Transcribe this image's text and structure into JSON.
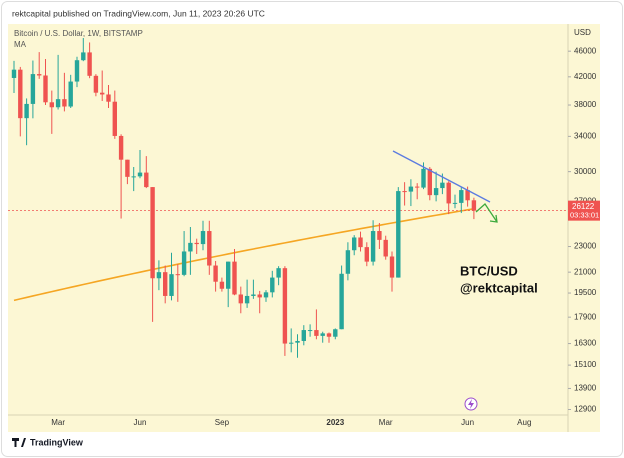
{
  "chart_data": {
    "type": "candlestick",
    "header": "rektcapital published on TradingView.com, Jun 11, 2023 20:26 UTC",
    "title": "Bitcoin / U.S. Dollar, 1W, BITSTAMP",
    "y_axis_label": "USD",
    "log_scale": true,
    "up_color": "#26a69a",
    "down_color": "#ef5350",
    "categories": [
      null,
      null,
      null,
      null,
      null,
      null,
      null,
      "Mar",
      null,
      null,
      null,
      null,
      null,
      null,
      null,
      null,
      null,
      null,
      null,
      null,
      "Jun",
      null,
      null,
      null,
      null,
      null,
      null,
      null,
      null,
      null,
      null,
      null,
      null,
      "Sep",
      null,
      null,
      null,
      null,
      null,
      null,
      null,
      null,
      null,
      null,
      null,
      null,
      null,
      null,
      null,
      null,
      null,
      "2023",
      null,
      null,
      null,
      null,
      null,
      null,
      null,
      "Mar",
      null,
      null,
      null,
      null,
      null,
      null,
      null,
      null,
      null,
      null,
      null,
      null,
      "Jun",
      null,
      null,
      null,
      null,
      null,
      null,
      null,
      null,
      "Aug",
      null,
      null,
      null,
      null,
      null,
      null
    ],
    "open": [
      41830,
      43080,
      36270,
      38150,
      42410,
      42200,
      38370,
      37700,
      38800,
      37800,
      41300,
      44550,
      45800,
      42150,
      39700,
      39450,
      38450,
      34050,
      31300,
      29450,
      29500,
      29900,
      28400,
      20550,
      21000,
      19300,
      20850,
      20800,
      22600,
      23300,
      23200,
      24300,
      21500,
      20300,
      19800,
      21800,
      19400,
      18800,
      19300,
      19400,
      19200,
      19550,
      20600,
      21300,
      16300,
      16350,
      16450,
      17100,
      17100,
      16750,
      16900,
      16700,
      17150,
      20880,
      22700,
      23750,
      22950,
      21800,
      24300,
      23550,
      22200,
      20600,
      28000,
      27950,
      28450,
      28350,
      30300,
      27600,
      28300,
      28850,
      26800,
      26850,
      28100,
      27100,
      null,
      null,
      null,
      null,
      null,
      null,
      null,
      null,
      null,
      null,
      null,
      null,
      null,
      null
    ],
    "high": [
      44450,
      43500,
      38900,
      44500,
      45850,
      44750,
      40000,
      45400,
      42600,
      42300,
      45100,
      48200,
      47450,
      42400,
      42950,
      40800,
      40000,
      34250,
      31300,
      30500,
      32400,
      31700,
      28400,
      21900,
      21500,
      22500,
      21600,
      24300,
      24650,
      23650,
      25200,
      25200,
      21850,
      20600,
      21800,
      22800,
      19950,
      20450,
      20450,
      19650,
      19700,
      21100,
      21450,
      21450,
      17200,
      16850,
      17400,
      17450,
      18400,
      17000,
      16950,
      17200,
      21500,
      23350,
      23950,
      24250,
      23350,
      25250,
      25000,
      23900,
      22600,
      28400,
      28900,
      29200,
      28800,
      31000,
      30500,
      30000,
      29800,
      29000,
      27650,
      28400,
      28450,
      27350,
      null,
      null,
      null,
      null,
      null,
      null,
      null,
      null,
      null,
      null,
      null,
      null,
      null,
      null
    ],
    "low": [
      39660,
      34000,
      32950,
      36250,
      41700,
      38000,
      34300,
      37400,
      37150,
      37600,
      40500,
      44400,
      41800,
      39200,
      38550,
      37600,
      33700,
      25400,
      28700,
      28000,
      29300,
      28300,
      17600,
      19700,
      18800,
      19000,
      18900,
      20700,
      20800,
      22400,
      22700,
      20800,
      19600,
      19600,
      18550,
      19350,
      18150,
      18500,
      19100,
      18150,
      18900,
      19200,
      20050,
      15600,
      15800,
      15500,
      16200,
      16700,
      16550,
      16350,
      16350,
      16550,
      17150,
      20400,
      22300,
      22600,
      21450,
      21500,
      22800,
      21950,
      19600,
      20600,
      26600,
      26550,
      27200,
      28200,
      27100,
      27000,
      27700,
      25800,
      26350,
      25900,
      26500,
      25350,
      null,
      null,
      null,
      null,
      null,
      null,
      null,
      null,
      null,
      null,
      null,
      null,
      null,
      null
    ],
    "close": [
      43080,
      36270,
      38150,
      42410,
      42200,
      38370,
      37700,
      38800,
      37800,
      41300,
      44550,
      45800,
      42150,
      39700,
      39450,
      38450,
      34050,
      31300,
      29450,
      29500,
      29900,
      28400,
      20550,
      21000,
      19300,
      20850,
      20800,
      22600,
      23300,
      23200,
      24300,
      21500,
      20300,
      19800,
      21800,
      19400,
      18800,
      19300,
      19400,
      19200,
      19550,
      20600,
      21300,
      16300,
      16350,
      16450,
      17100,
      17100,
      16750,
      16900,
      16700,
      17150,
      20880,
      22700,
      23750,
      22950,
      21800,
      24300,
      23550,
      22200,
      20600,
      28000,
      27950,
      28450,
      28350,
      30300,
      27600,
      28300,
      28850,
      26800,
      26850,
      28100,
      27100,
      26122,
      null,
      null,
      null,
      null,
      null,
      null,
      null,
      null,
      null,
      null,
      null,
      null,
      null,
      null
    ],
    "ma": {
      "name": "MA",
      "color": "#f5a623",
      "values": [
        19000,
        19100,
        19200,
        19300,
        19400,
        19500,
        19600,
        19700,
        19800,
        19900,
        20000,
        20100,
        20200,
        20300,
        20400,
        20500,
        20600,
        20700,
        20800,
        20900,
        21000,
        21100,
        21200,
        21300,
        21400,
        21500,
        21600,
        21700,
        21800,
        21900,
        22000,
        22100,
        22200,
        22300,
        22400,
        22500,
        22600,
        22700,
        22800,
        22900,
        23000,
        23100,
        23200,
        23300,
        23400,
        23500,
        23600,
        23700,
        23800,
        23900,
        24000,
        24100,
        24200,
        24300,
        24400,
        24500,
        24600,
        24700,
        24800,
        24900,
        25000,
        25100,
        25200,
        25300,
        25400,
        25500,
        25600,
        25700,
        25800,
        25900,
        26000,
        26100,
        26200,
        26300,
        null,
        null,
        null,
        null,
        null,
        null,
        null,
        null,
        null,
        null,
        null,
        null,
        null,
        null
      ]
    },
    "last_price": 26122,
    "countdown": "03:33:01",
    "ylim": [
      12650,
      50300
    ],
    "yticks": [
      12900,
      13900,
      15100,
      16300,
      17900,
      19500,
      21000,
      23000,
      27000,
      30000,
      34000,
      38000,
      42000,
      46000
    ],
    "annotation": [
      "BTC/USD",
      "@rektcapital"
    ],
    "footer": "TradingView"
  }
}
